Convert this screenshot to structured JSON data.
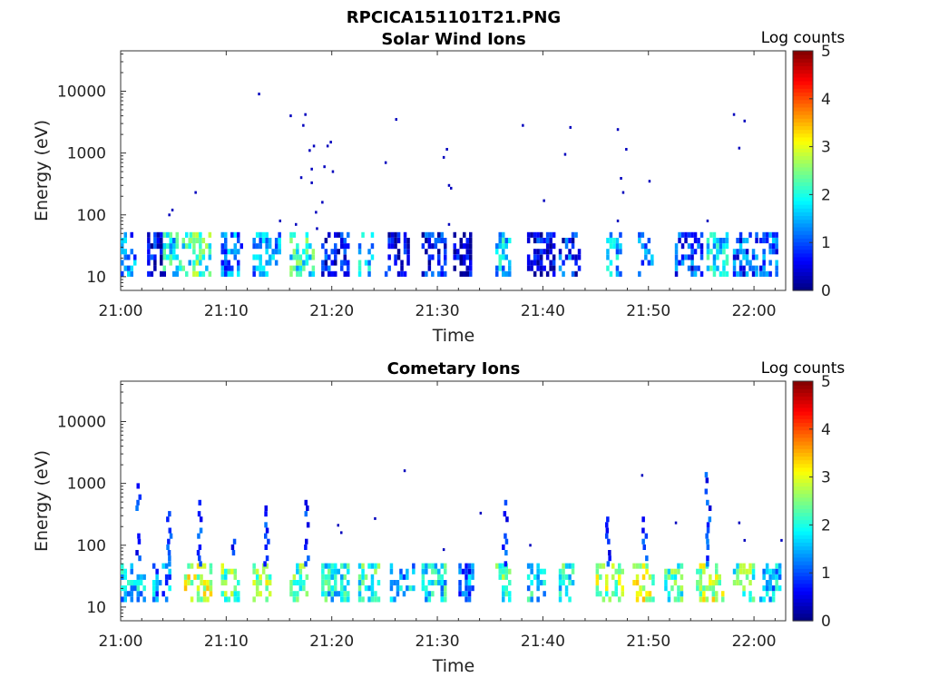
{
  "figure": {
    "title": "RPCICA151101T21.PNG"
  },
  "chart_data": [
    {
      "type": "heatmap",
      "title": "Solar Wind Ions",
      "xlabel": "Time",
      "ylabel": "Energy (eV)",
      "yscale": "log",
      "ylim": [
        6,
        45000
      ],
      "xlim": [
        "21:00",
        "22:03"
      ],
      "xticks": [
        "21:00",
        "21:10",
        "21:20",
        "21:30",
        "21:40",
        "21:50",
        "22:00"
      ],
      "yticks": [
        "10",
        "100",
        "1000",
        "10000"
      ],
      "colorbar": {
        "label": "Log counts",
        "ticks": [
          "0",
          "1",
          "2",
          "3",
          "4",
          "5"
        ],
        "range": [
          0,
          5
        ],
        "colormap": "jet"
      },
      "band_energy_range_eV": [
        10,
        45
      ],
      "band_clusters": [
        {
          "time": "21:01",
          "log_counts": 1.2
        },
        {
          "time": "21:03.5",
          "log_counts": 0.6
        },
        {
          "time": "21:05",
          "log_counts": 1.8
        },
        {
          "time": "21:07.5",
          "log_counts": 2.2
        },
        {
          "time": "21:10.5",
          "log_counts": 1.2
        },
        {
          "time": "21:13.5",
          "log_counts": 1.4
        },
        {
          "time": "21:17",
          "log_counts": 2.0
        },
        {
          "time": "21:20",
          "log_counts": 0.6
        },
        {
          "time": "21:23.5",
          "log_counts": 1.6
        },
        {
          "time": "21:26",
          "log_counts": 0.4
        },
        {
          "time": "21:29.5",
          "log_counts": 0.7
        },
        {
          "time": "21:32.5",
          "log_counts": 0.3
        },
        {
          "time": "21:36.5",
          "log_counts": 1.6
        },
        {
          "time": "21:39.5",
          "log_counts": 0.5
        },
        {
          "time": "21:42.5",
          "log_counts": 0.8
        },
        {
          "time": "21:47",
          "log_counts": 1.4
        },
        {
          "time": "21:50",
          "log_counts": 1.3
        },
        {
          "time": "21:53.5",
          "log_counts": 0.9
        },
        {
          "time": "21:56.5",
          "log_counts": 1.7
        },
        {
          "time": "21:59",
          "log_counts": 1.0
        },
        {
          "time": "22:01.5",
          "log_counts": 1.1
        }
      ],
      "sparse_points": [
        {
          "time": "21:04.5",
          "energy": 100
        },
        {
          "time": "21:04.8",
          "energy": 120
        },
        {
          "time": "21:07",
          "energy": 230
        },
        {
          "time": "21:13",
          "energy": 9000
        },
        {
          "time": "21:15",
          "energy": 80
        },
        {
          "time": "21:16",
          "energy": 4000
        },
        {
          "time": "21:16.5",
          "energy": 70
        },
        {
          "time": "21:17",
          "energy": 400
        },
        {
          "time": "21:17.2",
          "energy": 2800
        },
        {
          "time": "21:17.4",
          "energy": 4200
        },
        {
          "time": "21:17.8",
          "energy": 1100
        },
        {
          "time": "21:18",
          "energy": 550
        },
        {
          "time": "21:18",
          "energy": 330
        },
        {
          "time": "21:18.2",
          "energy": 1300
        },
        {
          "time": "21:18.4",
          "energy": 110
        },
        {
          "time": "21:18.5",
          "energy": 60
        },
        {
          "time": "21:19",
          "energy": 160
        },
        {
          "time": "21:19.2",
          "energy": 600
        },
        {
          "time": "21:19.5",
          "energy": 1300
        },
        {
          "time": "21:19.8",
          "energy": 1500
        },
        {
          "time": "21:20",
          "energy": 500
        },
        {
          "time": "21:25",
          "energy": 700
        },
        {
          "time": "21:26",
          "energy": 3500
        },
        {
          "time": "21:30.5",
          "energy": 850
        },
        {
          "time": "21:30.8",
          "energy": 1150
        },
        {
          "time": "21:31",
          "energy": 300
        },
        {
          "time": "21:31.2",
          "energy": 270
        },
        {
          "time": "21:31",
          "energy": 70
        },
        {
          "time": "21:38",
          "energy": 2800
        },
        {
          "time": "21:40",
          "energy": 170
        },
        {
          "time": "21:42",
          "energy": 950
        },
        {
          "time": "21:42.5",
          "energy": 2600
        },
        {
          "time": "21:47",
          "energy": 2400
        },
        {
          "time": "21:47",
          "energy": 80
        },
        {
          "time": "21:47.3",
          "energy": 390
        },
        {
          "time": "21:47.5",
          "energy": 230
        },
        {
          "time": "21:47.8",
          "energy": 1150
        },
        {
          "time": "21:50",
          "energy": 350
        },
        {
          "time": "21:55.5",
          "energy": 80
        },
        {
          "time": "21:58",
          "energy": 4200
        },
        {
          "time": "21:58.5",
          "energy": 1200
        },
        {
          "time": "21:59",
          "energy": 3300
        }
      ]
    },
    {
      "type": "heatmap",
      "title": "Cometary Ions",
      "xlabel": "Time",
      "ylabel": "Energy (eV)",
      "yscale": "log",
      "ylim": [
        6,
        45000
      ],
      "xlim": [
        "21:00",
        "22:03"
      ],
      "xticks": [
        "21:00",
        "21:10",
        "21:20",
        "21:30",
        "21:40",
        "21:50",
        "22:00"
      ],
      "yticks": [
        "10",
        "100",
        "1000",
        "10000"
      ],
      "colorbar": {
        "label": "Log counts",
        "ticks": [
          "0",
          "1",
          "2",
          "3",
          "4",
          "5"
        ],
        "range": [
          0,
          5
        ],
        "colormap": "jet"
      },
      "band_energy_range_eV": [
        12,
        45
      ],
      "band_clusters": [
        {
          "time": "21:01",
          "log_counts": 1.6
        },
        {
          "time": "21:04",
          "log_counts": 1.3
        },
        {
          "time": "21:07",
          "log_counts": 2.8
        },
        {
          "time": "21:10.5",
          "log_counts": 2.3
        },
        {
          "time": "21:13.5",
          "log_counts": 2.6
        },
        {
          "time": "21:17",
          "log_counts": 2.3
        },
        {
          "time": "21:20",
          "log_counts": 1.9
        },
        {
          "time": "21:23.5",
          "log_counts": 2.1
        },
        {
          "time": "21:26.5",
          "log_counts": 1.5
        },
        {
          "time": "21:29.5",
          "log_counts": 1.8
        },
        {
          "time": "21:33",
          "log_counts": 1.2
        },
        {
          "time": "21:36.5",
          "log_counts": 2.2
        },
        {
          "time": "21:39.5",
          "log_counts": 1.7
        },
        {
          "time": "21:42.5",
          "log_counts": 2.0
        },
        {
          "time": "21:46",
          "log_counts": 2.6
        },
        {
          "time": "21:49.5",
          "log_counts": 2.8
        },
        {
          "time": "21:52.5",
          "log_counts": 2.2
        },
        {
          "time": "21:55.5",
          "log_counts": 2.8
        },
        {
          "time": "21:59",
          "log_counts": 2.2
        },
        {
          "time": "22:01.5",
          "log_counts": 1.6
        }
      ],
      "vertical_streaks": [
        {
          "time": "21:01.5",
          "energy_top": 900
        },
        {
          "time": "21:04.5",
          "energy_top": 300
        },
        {
          "time": "21:07.3",
          "energy_top": 500
        },
        {
          "time": "21:10.5",
          "energy_top": 120
        },
        {
          "time": "21:13.7",
          "energy_top": 400
        },
        {
          "time": "21:17.5",
          "energy_top": 500
        },
        {
          "time": "21:36.3",
          "energy_top": 500
        },
        {
          "time": "21:46",
          "energy_top": 350
        },
        {
          "time": "21:49.5",
          "energy_top": 450
        },
        {
          "time": "21:55.5",
          "energy_top": 1400
        }
      ],
      "sparse_points": [
        {
          "time": "21:20.5",
          "energy": 210
        },
        {
          "time": "21:20.8",
          "energy": 160
        },
        {
          "time": "21:24",
          "energy": 270
        },
        {
          "time": "21:26.8",
          "energy": 1600
        },
        {
          "time": "21:30.5",
          "energy": 85
        },
        {
          "time": "21:34",
          "energy": 330
        },
        {
          "time": "21:38.7",
          "energy": 100
        },
        {
          "time": "21:49.3",
          "energy": 1350
        },
        {
          "time": "21:52.5",
          "energy": 230
        },
        {
          "time": "21:58.5",
          "energy": 230
        },
        {
          "time": "21:59",
          "energy": 120
        },
        {
          "time": "22:02.5",
          "energy": 120
        }
      ]
    }
  ]
}
